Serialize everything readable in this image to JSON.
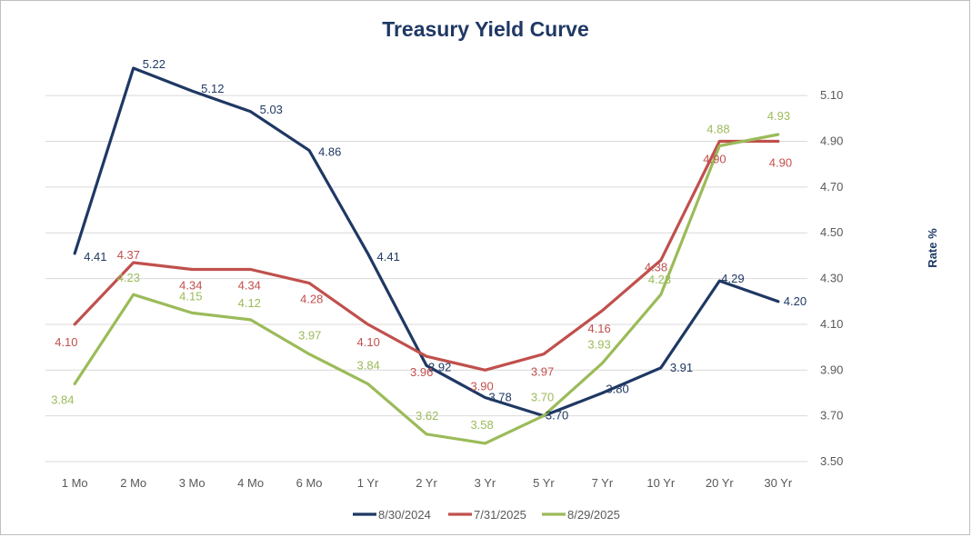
{
  "chart_data": {
    "type": "line",
    "title": "Treasury Yield Curve",
    "ylabel": "Rate %",
    "xlabel": "",
    "categories": [
      "1 Mo",
      "2 Mo",
      "3 Mo",
      "4 Mo",
      "6 Mo",
      "1 Yr",
      "2 Yr",
      "3 Yr",
      "5 Yr",
      "7 Yr",
      "10 Yr",
      "20 Yr",
      "30 Yr"
    ],
    "ylim": [
      3.5,
      5.2
    ],
    "yticks": [
      "3.50",
      "3.70",
      "3.90",
      "4.10",
      "4.30",
      "4.50",
      "4.70",
      "4.90",
      "5.10"
    ],
    "y_axis_side": "right",
    "grid": true,
    "legend_position": "bottom",
    "series": [
      {
        "name": "8/30/2024",
        "color": "#1f3864",
        "values": [
          4.41,
          5.22,
          5.12,
          5.03,
          4.86,
          4.41,
          3.92,
          3.78,
          3.7,
          3.8,
          3.91,
          4.29,
          4.2
        ],
        "labels": [
          "4.41",
          "5.22",
          "5.12",
          "5.03",
          "4.86",
          "4.41",
          "3.92",
          "3.78",
          "3.70",
          "3.80",
          "3.91",
          "4.29",
          "4.20"
        ]
      },
      {
        "name": "7/31/2025",
        "color": "#c0504d",
        "values": [
          4.1,
          4.37,
          4.34,
          4.34,
          4.28,
          4.1,
          3.96,
          3.9,
          3.97,
          4.16,
          4.38,
          4.9,
          4.9
        ],
        "labels": [
          "4.10",
          "4.37",
          "4.34",
          "4.34",
          "4.28",
          "4.10",
          "3.96",
          "3.90",
          "3.97",
          "4.16",
          "4.38",
          "4.90",
          "4.90"
        ]
      },
      {
        "name": "8/29/2025",
        "color": "#9bbb59",
        "values": [
          3.84,
          4.23,
          4.15,
          4.12,
          3.97,
          3.84,
          3.62,
          3.58,
          3.7,
          3.93,
          4.23,
          4.88,
          4.93
        ],
        "labels": [
          "3.84",
          "4.23",
          "4.15",
          "4.12",
          "3.97",
          "3.84",
          "3.62",
          "3.58",
          "3.70",
          "3.93",
          "4.23",
          "4.88",
          "4.93"
        ]
      }
    ]
  }
}
